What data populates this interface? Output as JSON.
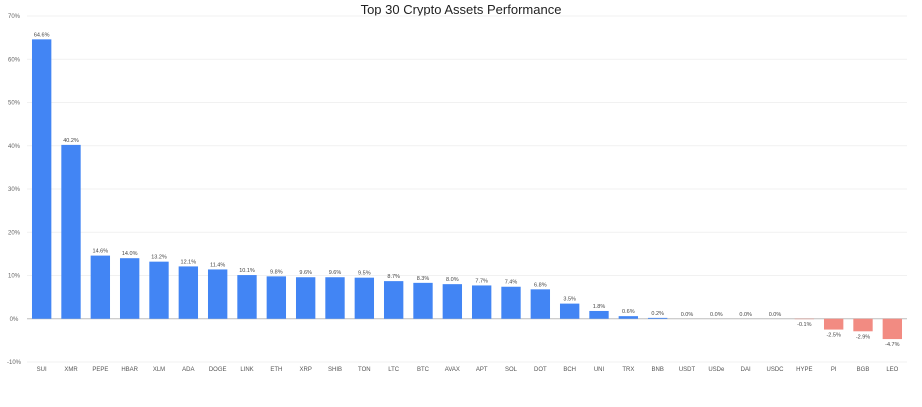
{
  "chart_data": {
    "type": "bar",
    "title": "Top 30 Crypto Assets Performance",
    "xlabel": "",
    "ylabel": "",
    "ylim": [
      -10,
      70
    ],
    "yticks": [
      -10,
      0,
      10,
      20,
      30,
      40,
      50,
      60,
      70
    ],
    "ytick_labels": [
      "-10%",
      "0%",
      "10%",
      "20%",
      "30%",
      "40%",
      "50%",
      "60%",
      "70%"
    ],
    "grid": true,
    "legend": "none",
    "categories": [
      "SUI",
      "XMR",
      "PEPE",
      "HBAR",
      "XLM",
      "ADA",
      "DOGE",
      "LINK",
      "ETH",
      "XRP",
      "SHIB",
      "TON",
      "LTC",
      "BTC",
      "AVAX",
      "APT",
      "SOL",
      "DOT",
      "BCH",
      "UNI",
      "TRX",
      "BNB",
      "USDT",
      "USDe",
      "DAI",
      "USDC",
      "HYPE",
      "PI",
      "BGB",
      "LEO"
    ],
    "values": [
      64.6,
      40.2,
      14.6,
      14.0,
      13.2,
      12.1,
      11.4,
      10.1,
      9.8,
      9.6,
      9.6,
      9.5,
      8.7,
      8.3,
      8.0,
      7.7,
      7.4,
      6.8,
      3.5,
      1.8,
      0.6,
      0.2,
      0.0,
      0.0,
      0.0,
      0.0,
      -0.1,
      -2.5,
      -2.9,
      -4.7
    ],
    "data_labels": [
      "64.6%",
      "40.2%",
      "14.6%",
      "14.0%",
      "13.2%",
      "12.1%",
      "11.4%",
      "10.1%",
      "9.8%",
      "9.6%",
      "9.6%",
      "9.5%",
      "8.7%",
      "8.3%",
      "8.0%",
      "7.7%",
      "7.4%",
      "6.8%",
      "3.5%",
      "1.8%",
      "0.6%",
      "0.2%",
      "0.0%",
      "0.0%",
      "0.0%",
      "0.0%",
      "-0.1%",
      "-2.5%",
      "-2.9%",
      "-4.7%"
    ],
    "colors": {
      "positive": "#4285f4",
      "negative": "#f28b82"
    }
  }
}
